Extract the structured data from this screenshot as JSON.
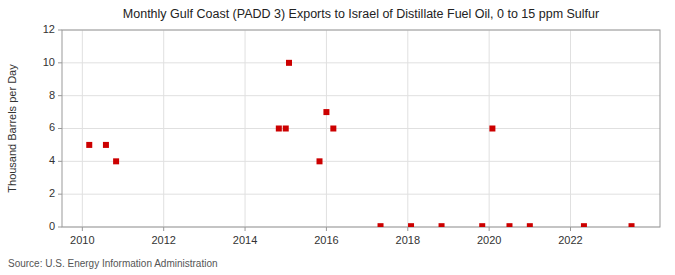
{
  "chart_data": {
    "type": "scatter",
    "title": "Monthly Gulf Coast (PADD 3) Exports to Israel of Distillate Fuel Oil, 0 to 15 ppm Sulfur",
    "y_label": "Thousand Barrels per Day",
    "source": "Source: U.S. Energy Information Administration",
    "x": [
      2010.17,
      2010.58,
      2010.83,
      2014.83,
      2015.0,
      2015.08,
      2015.83,
      2016.0,
      2016.17,
      2017.33,
      2018.08,
      2018.83,
      2019.83,
      2020.08,
      2020.5,
      2021.0,
      2022.33,
      2023.5
    ],
    "values": [
      5,
      5,
      4,
      6,
      6,
      10,
      4,
      7,
      6,
      0.05,
      0.05,
      0.05,
      0.05,
      6,
      0.05,
      0.05,
      0.05,
      0.05
    ],
    "color": "#cc0000",
    "marker": "square",
    "xlim": [
      2009.5,
      2024.2
    ],
    "ylim": [
      0,
      12
    ],
    "xticks": [
      2010,
      2012,
      2014,
      2016,
      2018,
      2020,
      2022
    ],
    "yticks": [
      0,
      2,
      4,
      6,
      8,
      10,
      12
    ],
    "grid": true
  }
}
